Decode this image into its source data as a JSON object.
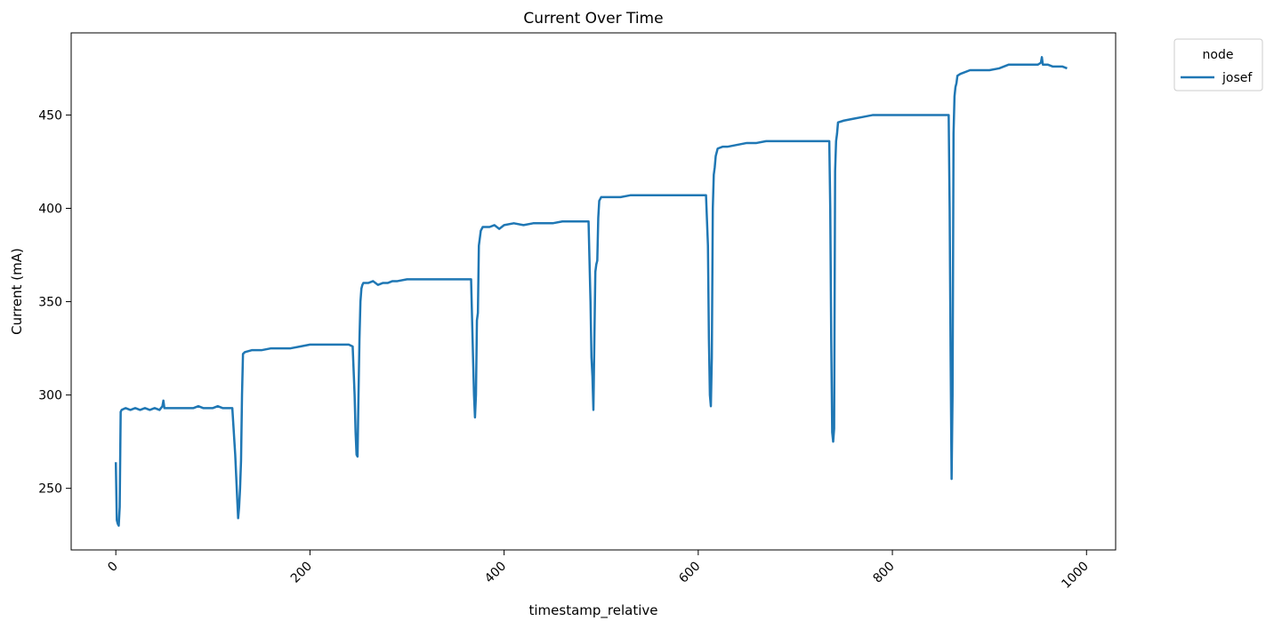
{
  "chart_data": {
    "type": "line",
    "title": "Current Over Time",
    "xlabel": "timestamp_relative",
    "ylabel": "Current (mA)",
    "xlim": [
      -46,
      1030
    ],
    "ylim": [
      217,
      494
    ],
    "xticks": [
      0,
      200,
      400,
      600,
      800,
      1000
    ],
    "yticks": [
      250,
      300,
      350,
      400,
      450
    ],
    "xtick_rotation": 45,
    "grid": false,
    "legend": {
      "title": "node",
      "placement": "outside-top-right"
    },
    "series": [
      {
        "name": "josef",
        "color": "#1f77b4",
        "points": [
          [
            0,
            264
          ],
          [
            1,
            233
          ],
          [
            2,
            231
          ],
          [
            3,
            230
          ],
          [
            4,
            240
          ],
          [
            5,
            291
          ],
          [
            6,
            292
          ],
          [
            10,
            293
          ],
          [
            15,
            292
          ],
          [
            20,
            293
          ],
          [
            25,
            292
          ],
          [
            30,
            293
          ],
          [
            35,
            292
          ],
          [
            40,
            293
          ],
          [
            45,
            292
          ],
          [
            48,
            294
          ],
          [
            49,
            297
          ],
          [
            50,
            293
          ],
          [
            60,
            293
          ],
          [
            70,
            293
          ],
          [
            80,
            293
          ],
          [
            85,
            294
          ],
          [
            90,
            293
          ],
          [
            100,
            293
          ],
          [
            105,
            294
          ],
          [
            110,
            293
          ],
          [
            120,
            293
          ],
          [
            123,
            268
          ],
          [
            125,
            245
          ],
          [
            126,
            234
          ],
          [
            127,
            240
          ],
          [
            128,
            250
          ],
          [
            129,
            265
          ],
          [
            130,
            300
          ],
          [
            131,
            322
          ],
          [
            133,
            323
          ],
          [
            140,
            324
          ],
          [
            150,
            324
          ],
          [
            160,
            325
          ],
          [
            170,
            325
          ],
          [
            180,
            325
          ],
          [
            190,
            326
          ],
          [
            200,
            327
          ],
          [
            210,
            327
          ],
          [
            220,
            327
          ],
          [
            230,
            327
          ],
          [
            240,
            327
          ],
          [
            244,
            326
          ],
          [
            246,
            300
          ],
          [
            247,
            280
          ],
          [
            248,
            268
          ],
          [
            249,
            267
          ],
          [
            250,
            300
          ],
          [
            251,
            330
          ],
          [
            252,
            350
          ],
          [
            253,
            357
          ],
          [
            254,
            359
          ],
          [
            255,
            360
          ],
          [
            260,
            360
          ],
          [
            265,
            361
          ],
          [
            270,
            359
          ],
          [
            275,
            360
          ],
          [
            280,
            360
          ],
          [
            285,
            361
          ],
          [
            290,
            361
          ],
          [
            300,
            362
          ],
          [
            310,
            362
          ],
          [
            320,
            362
          ],
          [
            330,
            362
          ],
          [
            340,
            362
          ],
          [
            350,
            362
          ],
          [
            360,
            362
          ],
          [
            366,
            362
          ],
          [
            368,
            320
          ],
          [
            369,
            300
          ],
          [
            370,
            288
          ],
          [
            371,
            300
          ],
          [
            372,
            340
          ],
          [
            373,
            344
          ],
          [
            374,
            380
          ],
          [
            376,
            388
          ],
          [
            378,
            390
          ],
          [
            385,
            390
          ],
          [
            390,
            391
          ],
          [
            395,
            389
          ],
          [
            400,
            391
          ],
          [
            410,
            392
          ],
          [
            420,
            391
          ],
          [
            430,
            392
          ],
          [
            440,
            392
          ],
          [
            450,
            392
          ],
          [
            460,
            393
          ],
          [
            470,
            393
          ],
          [
            480,
            393
          ],
          [
            487,
            393
          ],
          [
            489,
            350
          ],
          [
            490,
            320
          ],
          [
            491,
            310
          ],
          [
            492,
            292
          ],
          [
            493,
            330
          ],
          [
            494,
            366
          ],
          [
            495,
            370
          ],
          [
            496,
            372
          ],
          [
            497,
            395
          ],
          [
            498,
            404
          ],
          [
            500,
            406
          ],
          [
            510,
            406
          ],
          [
            520,
            406
          ],
          [
            530,
            407
          ],
          [
            540,
            407
          ],
          [
            550,
            407
          ],
          [
            560,
            407
          ],
          [
            570,
            407
          ],
          [
            580,
            407
          ],
          [
            590,
            407
          ],
          [
            600,
            407
          ],
          [
            608,
            407
          ],
          [
            610,
            380
          ],
          [
            611,
            330
          ],
          [
            612,
            300
          ],
          [
            613,
            294
          ],
          [
            614,
            320
          ],
          [
            615,
            400
          ],
          [
            616,
            418
          ],
          [
            617,
            422
          ],
          [
            618,
            428
          ],
          [
            620,
            432
          ],
          [
            625,
            433
          ],
          [
            630,
            433
          ],
          [
            640,
            434
          ],
          [
            650,
            435
          ],
          [
            660,
            435
          ],
          [
            670,
            436
          ],
          [
            680,
            436
          ],
          [
            690,
            436
          ],
          [
            700,
            436
          ],
          [
            710,
            436
          ],
          [
            720,
            436
          ],
          [
            730,
            436
          ],
          [
            735,
            436
          ],
          [
            736,
            400
          ],
          [
            737,
            330
          ],
          [
            738,
            280
          ],
          [
            739,
            275
          ],
          [
            740,
            282
          ],
          [
            741,
            420
          ],
          [
            742,
            436
          ],
          [
            743,
            440
          ],
          [
            744,
            446
          ],
          [
            750,
            447
          ],
          [
            760,
            448
          ],
          [
            770,
            449
          ],
          [
            780,
            450
          ],
          [
            790,
            450
          ],
          [
            800,
            450
          ],
          [
            810,
            450
          ],
          [
            820,
            450
          ],
          [
            830,
            450
          ],
          [
            840,
            450
          ],
          [
            850,
            450
          ],
          [
            858,
            450
          ],
          [
            859,
            400
          ],
          [
            860,
            320
          ],
          [
            861,
            255
          ],
          [
            862,
            300
          ],
          [
            863,
            440
          ],
          [
            864,
            460
          ],
          [
            865,
            465
          ],
          [
            866,
            467
          ],
          [
            867,
            471
          ],
          [
            870,
            472
          ],
          [
            880,
            474
          ],
          [
            890,
            474
          ],
          [
            900,
            474
          ],
          [
            910,
            475
          ],
          [
            920,
            477
          ],
          [
            930,
            477
          ],
          [
            940,
            477
          ],
          [
            950,
            477
          ],
          [
            953,
            478
          ],
          [
            954,
            481
          ],
          [
            955,
            477
          ],
          [
            960,
            477
          ],
          [
            965,
            476
          ],
          [
            970,
            476
          ],
          [
            975,
            476
          ],
          [
            980,
            475
          ]
        ]
      }
    ]
  }
}
